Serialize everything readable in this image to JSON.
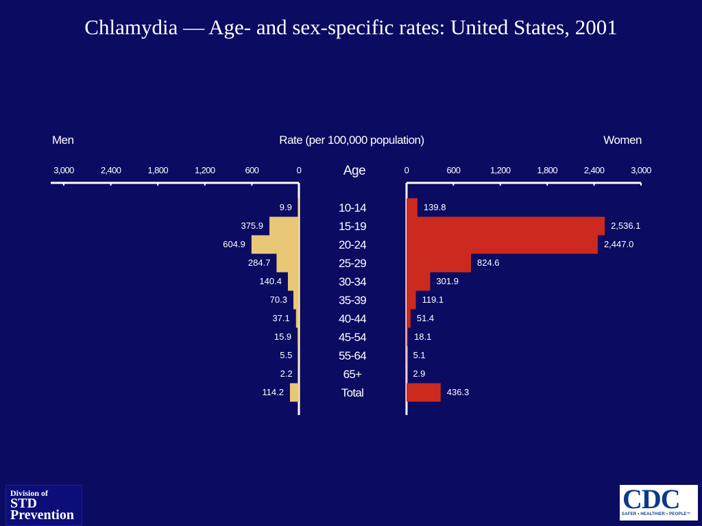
{
  "title": "Chlamydia — Age- and sex-specific rates: United States, 2001",
  "colors": {
    "background": "#0b0b62",
    "men_bar": "#e8c877",
    "women_bar": "#cc2a1e",
    "axis": "#ffffff",
    "text": "#ffffff"
  },
  "logos": {
    "std": {
      "line1": "Division of",
      "line2": "STD",
      "line3": "Prevention"
    },
    "cdc": {
      "mark": "CDC",
      "tagline": "SAFER • HEALTHIER • PEOPLE™"
    }
  },
  "chart_data": {
    "type": "bar",
    "orientation": "horizontal-population-pyramid",
    "title": "Rate (per 100,000 population)",
    "left_label": "Men",
    "right_label": "Women",
    "category_header": "Age",
    "categories": [
      "10-14",
      "15-19",
      "20-24",
      "25-29",
      "30-34",
      "35-39",
      "40-44",
      "45-54",
      "55-64",
      "65+",
      "Total"
    ],
    "series": [
      {
        "name": "Men",
        "side": "left",
        "values": [
          9.9,
          375.9,
          604.9,
          284.7,
          140.4,
          70.3,
          37.1,
          15.9,
          5.5,
          2.2,
          114.2
        ],
        "labels": [
          "9.9",
          "375.9",
          "604.9",
          "284.7",
          "140.4",
          "70.3",
          "37.1",
          "15.9",
          "5.5",
          "2.2",
          "114.2"
        ]
      },
      {
        "name": "Women",
        "side": "right",
        "values": [
          139.8,
          2536.1,
          2447.0,
          824.6,
          301.9,
          119.1,
          51.4,
          18.1,
          5.1,
          2.9,
          436.3
        ],
        "labels": [
          "139.8",
          "2,536.1",
          "2,447.0",
          "824.6",
          "301.9",
          "119.1",
          "51.4",
          "18.1",
          "5.1",
          "2.9",
          "436.3"
        ]
      }
    ],
    "axis": {
      "left_ticks": [
        "3,000",
        "2,400",
        "1,800",
        "1,200",
        "600",
        "0"
      ],
      "right_ticks": [
        "0",
        "600",
        "1,200",
        "1,800",
        "2,400",
        "3,000"
      ],
      "tick_values_left": [
        3000,
        2400,
        1800,
        1200,
        600,
        0
      ],
      "tick_values_right": [
        0,
        600,
        1200,
        1800,
        2400,
        3000
      ],
      "xlim": [
        0,
        3000
      ]
    },
    "grid": false
  }
}
